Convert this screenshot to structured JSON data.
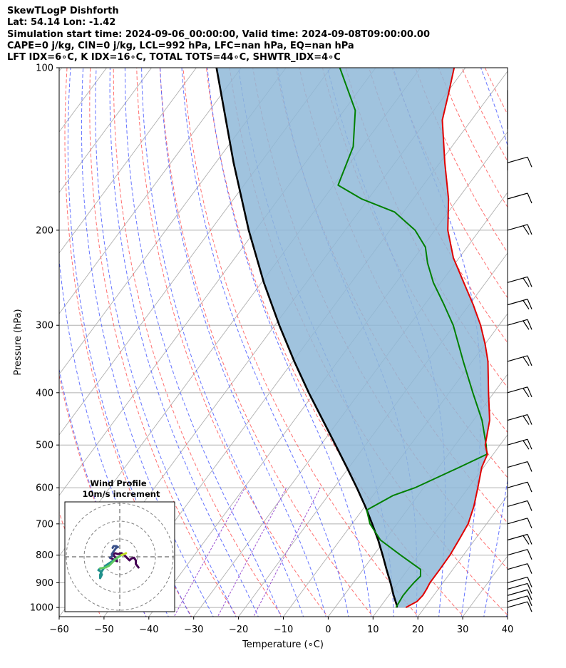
{
  "header": {
    "line1": "SkewTLogP Dishforth",
    "line2": "Lat: 54.14   Lon: -1.42",
    "line3": "Simulation start time: 2024-09-06_00:00:00, Valid time: 2024-09-08T09:00:00.00",
    "line4": "CAPE=0 j/kg, CIN=0 j/kg, LCL=992 hPa, LFC=nan hPa, EQ=nan hPa",
    "line5": "LFT IDX=6∘C, K IDX=16∘C, TOTAL TOTS=44∘C, SHWTR_IDX=4∘C"
  },
  "colors": {
    "temperature": "#e00000",
    "dewpoint": "#008000",
    "parcel": "#000000",
    "cape_fill": "#8fb9d8",
    "dry_adiabat": "#ff6060",
    "moist_adiabat": "#4a5cff",
    "mixing_ratio": "#9a4fd0",
    "isotherm": "#b0b0b0"
  },
  "chart_data": [
    {
      "type": "line",
      "title": "SkewTLogP Dishforth",
      "xlabel": "Temperature (∘C)",
      "ylabel": "Pressure (hPa)",
      "xlim": [
        -60,
        40
      ],
      "ylim": [
        1040,
        100
      ],
      "yscale": "log",
      "skew": true,
      "grid": true,
      "x_ticks": [
        -60,
        -50,
        -40,
        -30,
        -20,
        -10,
        0,
        10,
        20,
        30,
        40
      ],
      "x_tick_labels": [
        "−60",
        "−50",
        "−40",
        "−30",
        "−20",
        "−10",
        "0",
        "10",
        "20",
        "30",
        "40"
      ],
      "y_ticks": [
        100,
        200,
        300,
        400,
        500,
        600,
        700,
        800,
        900,
        1000
      ],
      "y_tick_labels": [
        "100",
        "200",
        "300",
        "400",
        "500",
        "600",
        "700",
        "800",
        "900",
        "1000"
      ],
      "series": [
        {
          "key": "temperature",
          "points": [
            [
              1000,
              15.8
            ],
            [
              975,
              17.3
            ],
            [
              950,
              17.6
            ],
            [
              925,
              17.4
            ],
            [
              900,
              17.1
            ],
            [
              850,
              17.1
            ],
            [
              800,
              17.0
            ],
            [
              750,
              16.5
            ],
            [
              700,
              15.9
            ],
            [
              650,
              14.3
            ],
            [
              600,
              12.1
            ],
            [
              550,
              9.6
            ],
            [
              520,
              8.7
            ],
            [
              500,
              6.7
            ],
            [
              450,
              3.6
            ],
            [
              400,
              -1.2
            ],
            [
              350,
              -6.5
            ],
            [
              325,
              -10.0
            ],
            [
              300,
              -14.1
            ],
            [
              275,
              -19.1
            ],
            [
              250,
              -24.9
            ],
            [
              225,
              -31.3
            ],
            [
              200,
              -37.1
            ],
            [
              175,
              -42.1
            ],
            [
              150,
              -48.9
            ],
            [
              125,
              -56.5
            ],
            [
              112,
              -59.4
            ],
            [
              100,
              -62.5
            ]
          ]
        },
        {
          "key": "dewpoint",
          "points": [
            [
              1000,
              13.6
            ],
            [
              975,
              13.4
            ],
            [
              950,
              13.2
            ],
            [
              925,
              13.3
            ],
            [
              900,
              13.5
            ],
            [
              875,
              13.9
            ],
            [
              850,
              12.8
            ],
            [
              800,
              6.0
            ],
            [
              750,
              -1.0
            ],
            [
              700,
              -6.0
            ],
            [
              660,
              -9.0
            ],
            [
              620,
              -5.5
            ],
            [
              600,
              -1.9
            ],
            [
              550,
              4.6
            ],
            [
              520,
              8.6
            ],
            [
              500,
              6.9
            ],
            [
              450,
              1.9
            ],
            [
              400,
              -4.7
            ],
            [
              350,
              -12.0
            ],
            [
              300,
              -20.2
            ],
            [
              275,
              -25.6
            ],
            [
              250,
              -31.7
            ],
            [
              230,
              -36.2
            ],
            [
              215,
              -39.3
            ],
            [
              200,
              -44.4
            ],
            [
              185,
              -52.0
            ],
            [
              175,
              -61.5
            ],
            [
              165,
              -69.0
            ],
            [
              140,
              -72.0
            ],
            [
              120,
              -77.5
            ],
            [
              100,
              -88.0
            ]
          ]
        },
        {
          "key": "parcel",
          "points": [
            [
              1000,
              13.8
            ],
            [
              992,
              13.5
            ],
            [
              950,
              11.1
            ],
            [
              900,
              8.3
            ],
            [
              850,
              5.2
            ],
            [
              800,
              2.0
            ],
            [
              750,
              -1.5
            ],
            [
              700,
              -5.5
            ],
            [
              650,
              -9.9
            ],
            [
              600,
              -14.9
            ],
            [
              550,
              -20.5
            ],
            [
              500,
              -26.7
            ],
            [
              450,
              -33.6
            ],
            [
              400,
              -41.3
            ],
            [
              350,
              -49.7
            ],
            [
              300,
              -59.0
            ],
            [
              250,
              -69.5
            ],
            [
              200,
              -81.5
            ],
            [
              150,
              -96.0
            ],
            [
              100,
              -115.5
            ]
          ]
        }
      ]
    },
    {
      "type": "line",
      "title": "Wind Profile",
      "subtitle": "10m/s increment",
      "rings": [
        10,
        20,
        30
      ],
      "segments": [
        {
          "color": "#440154",
          "points": [
            [
              10.5,
              -6
            ],
            [
              9,
              -4
            ],
            [
              9,
              -2
            ],
            [
              8,
              -0.5
            ],
            [
              6.5,
              -1
            ],
            [
              5.5,
              -2
            ],
            [
              4,
              -0.5
            ],
            [
              2.5,
              1
            ],
            [
              1,
              2
            ],
            [
              -1,
              1.5
            ],
            [
              -2.5,
              2
            ],
            [
              -4,
              1.5
            ],
            [
              -2,
              -1
            ],
            [
              -1.5,
              -2.5
            ],
            [
              -3.5,
              -1.5
            ],
            [
              -5.5,
              -0.5
            ]
          ]
        },
        {
          "color": "#3b528b",
          "points": [
            [
              -5.5,
              -0.5
            ],
            [
              -4,
              0.5
            ],
            [
              -4.5,
              1.5
            ],
            [
              -3.5,
              3
            ],
            [
              -2,
              5
            ],
            [
              -1,
              5.5
            ],
            [
              -2,
              6
            ],
            [
              -3.5,
              6
            ],
            [
              -4,
              5
            ]
          ]
        },
        {
          "color": "#21918c",
          "points": [
            [
              -2,
              -1
            ],
            [
              -5,
              -3
            ],
            [
              -8,
              -5
            ],
            [
              -10,
              -8
            ],
            [
              -11,
              -10
            ],
            [
              -11,
              -12
            ],
            [
              -10,
              -10
            ],
            [
              -11,
              -8
            ],
            [
              -12,
              -7.5
            ],
            [
              -11,
              -6.5
            ]
          ]
        },
        {
          "color": "#5ec962",
          "points": [
            [
              -11,
              -6.5
            ],
            [
              -8,
              -6
            ],
            [
              -6,
              -5
            ],
            [
              -4,
              -3
            ],
            [
              -2,
              -1
            ],
            [
              1,
              1
            ]
          ]
        },
        {
          "color": "#c2df23",
          "points": [
            [
              1,
              1
            ],
            [
              2.5,
              1.5
            ],
            [
              3.5,
              2
            ]
          ]
        }
      ]
    }
  ]
}
